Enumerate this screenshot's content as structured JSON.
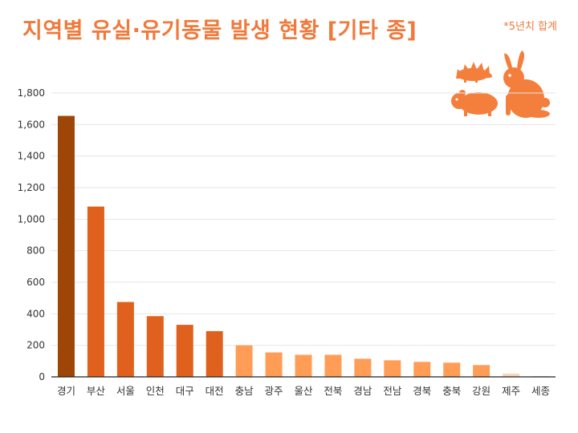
{
  "title": "지역별 유실·유기동물 발생 현황 [기타 종]",
  "note": "*5년치 합계",
  "icons": [
    "hedgehog-icon",
    "guinea-pig-icon",
    "rabbit-icon"
  ],
  "colors": {
    "title": "#ef7a3c",
    "accent_icons": "#f47f3d",
    "bar_top": "#9e4508",
    "bar_mid": "#e0611d",
    "bar_low": "#ff9d57",
    "bar_min": "#fbd2b6",
    "grid": "#e6e6e6"
  },
  "chart_data": {
    "type": "bar",
    "title": "지역별 유실·유기동물 발생 현황 [기타 종]",
    "xlabel": "",
    "ylabel": "",
    "ylim": [
      0,
      1800
    ],
    "yticks": [
      0,
      200,
      400,
      600,
      800,
      1000,
      1200,
      1400,
      1600,
      1800
    ],
    "ytick_labels": [
      "0",
      "200",
      "400",
      "600",
      "800",
      "1,000",
      "1,200",
      "1,400",
      "1,600",
      "1,800"
    ],
    "grid": true,
    "categories": [
      "경기",
      "부산",
      "서울",
      "인천",
      "대구",
      "대전",
      "충남",
      "광주",
      "울산",
      "전북",
      "경남",
      "전남",
      "경북",
      "충북",
      "강원",
      "제주",
      "세종"
    ],
    "values": [
      1655,
      1080,
      475,
      385,
      330,
      290,
      200,
      155,
      140,
      140,
      115,
      105,
      95,
      90,
      75,
      20,
      5
    ]
  }
}
